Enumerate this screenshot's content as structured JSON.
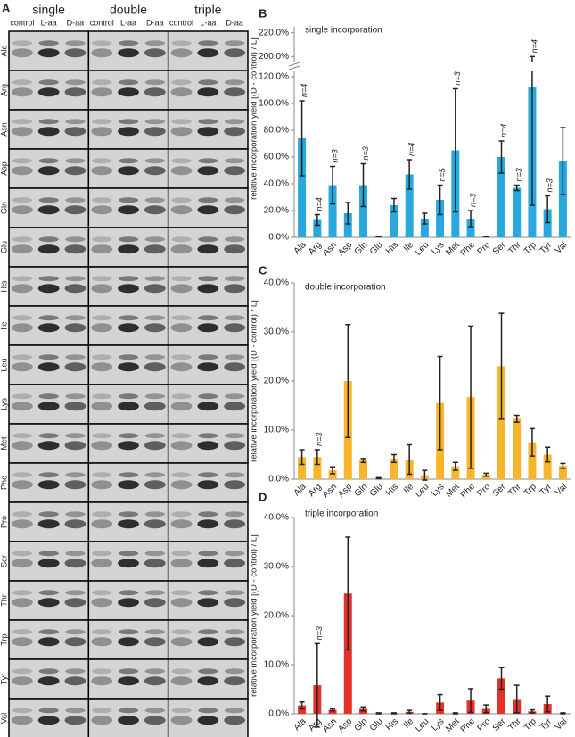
{
  "gel": {
    "panel": "A",
    "groups": [
      "single",
      "double",
      "triple"
    ],
    "lanes": [
      "control",
      "L-aa",
      "D-aa"
    ],
    "rows": [
      "Ala",
      "Arg",
      "Asn",
      "Asp",
      "Gln",
      "Glu",
      "His",
      "Ile",
      "Leu",
      "Lys",
      "Met",
      "Phe",
      "Pro",
      "Ser",
      "Thr",
      "Trp",
      "Tyr",
      "Val"
    ]
  },
  "chart_data": [
    {
      "type": "bar",
      "panel": "B",
      "title": "single incorporation",
      "y_label": "relative incorporation yield [(D - control) / L]",
      "color": "#29a8e0",
      "categories": [
        "Ala",
        "Arg",
        "Asn",
        "Asp",
        "Gln",
        "Glu",
        "His",
        "Ile",
        "Leu",
        "Lys",
        "Met",
        "Phe",
        "Pro",
        "Ser",
        "Thr",
        "Trp",
        "Tyr",
        "Val"
      ],
      "values": [
        74,
        13,
        39,
        18,
        39,
        0.5,
        24,
        47,
        14,
        28,
        65,
        14,
        0.5,
        60,
        37,
        112,
        21,
        57
      ],
      "errors": [
        28,
        4,
        14,
        8,
        16,
        0,
        5,
        11,
        4,
        11,
        46,
        6,
        0,
        12,
        2,
        88,
        10,
        25
      ],
      "ylim": [
        0,
        124
      ],
      "yticks": [
        {
          "value": 0,
          "label": "0.0%"
        },
        {
          "value": 20,
          "label": "20.0%"
        },
        {
          "value": 40,
          "label": "40.0%"
        },
        {
          "value": 60,
          "label": "60.0%"
        },
        {
          "value": 80,
          "label": "80.0%"
        },
        {
          "value": 100,
          "label": "100.0%"
        },
        {
          "value": 120,
          "label": "120.0%"
        }
      ],
      "ybreak_lim": [
        195,
        225
      ],
      "ybreak_ticks": [
        {
          "value": 200,
          "label": "200.0%"
        },
        {
          "value": 220,
          "label": "220.0%"
        }
      ],
      "annotations": [
        {
          "x": "Ala",
          "text": "n=4"
        },
        {
          "x": "Arg",
          "text": "n=4"
        },
        {
          "x": "Asn",
          "text": "n=3"
        },
        {
          "x": "Gln",
          "text": "n=3"
        },
        {
          "x": "Ile",
          "text": "n=4"
        },
        {
          "x": "Lys",
          "text": "n=5"
        },
        {
          "x": "Met",
          "text": "n=3"
        },
        {
          "x": "Phe",
          "text": "n=3"
        },
        {
          "x": "Ser",
          "text": "n=4"
        },
        {
          "x": "Thr",
          "text": "n=3"
        },
        {
          "x": "Trp",
          "text": "n=4"
        },
        {
          "x": "Tyr",
          "text": "n=3"
        }
      ]
    },
    {
      "type": "bar",
      "panel": "C",
      "title": "double incorporation",
      "y_label": "relative incorporation yield [(D - control) / L]",
      "color": "#f7b52c",
      "categories": [
        "Ala",
        "Arg",
        "Asn",
        "Asp",
        "Gln",
        "Glu",
        "His",
        "Ile",
        "Leu",
        "Lys",
        "Met",
        "Phe",
        "Pro",
        "Ser",
        "Thr",
        "Trp",
        "Tyr",
        "Val"
      ],
      "values": [
        4.5,
        4.5,
        1.8,
        20,
        3.8,
        0.2,
        4.2,
        4,
        0.8,
        15.5,
        2.6,
        16.7,
        0.9,
        23,
        12.3,
        7.5,
        5,
        2.7
      ],
      "errors": [
        1.5,
        1.5,
        0.7,
        11.5,
        0.4,
        0.1,
        0.8,
        3,
        1,
        9.5,
        0.8,
        14.5,
        0.3,
        10.8,
        0.7,
        2.8,
        1.5,
        0.5
      ],
      "ylim": [
        0,
        40
      ],
      "yticks": [
        {
          "value": 0,
          "label": "0.0%"
        },
        {
          "value": 10,
          "label": "10.0%"
        },
        {
          "value": 20,
          "label": "20.0%"
        },
        {
          "value": 30,
          "label": "30.0%"
        },
        {
          "value": 40,
          "label": "40.0%"
        }
      ],
      "annotations": [
        {
          "x": "Arg",
          "text": "n=3"
        }
      ]
    },
    {
      "type": "bar",
      "panel": "D",
      "title": "triple incorporation",
      "y_label": "relative incorporation yield [(D - control) / L]",
      "color": "#e4322b",
      "categories": [
        "Ala",
        "Arg",
        "Asn",
        "Asp",
        "Gln",
        "Glu",
        "His",
        "Ile",
        "Leu",
        "Lys",
        "Met",
        "Phe",
        "Pro",
        "Ser",
        "Thr",
        "Trp",
        "Tyr",
        "Val"
      ],
      "values": [
        1.7,
        5.8,
        0.8,
        24.5,
        1,
        0.1,
        0.1,
        0.4,
        0,
        2.3,
        0.1,
        2.7,
        1,
        7.2,
        3,
        0.5,
        2,
        0.1
      ],
      "errors": [
        0.7,
        8.5,
        0.2,
        11.5,
        0.4,
        0.1,
        0.1,
        0.3,
        0,
        1.6,
        0.1,
        2.4,
        0.8,
        2.2,
        2.8,
        0.3,
        1.6,
        0.1
      ],
      "ylim": [
        0,
        40
      ],
      "yticks": [
        {
          "value": 0,
          "label": "0.0%"
        },
        {
          "value": 10,
          "label": "10.0%"
        },
        {
          "value": 20,
          "label": "20.0%"
        },
        {
          "value": 30,
          "label": "30.0%"
        },
        {
          "value": 40,
          "label": "40.0%"
        }
      ],
      "annotations": [
        {
          "x": "Arg",
          "text": "n=3"
        }
      ]
    }
  ]
}
